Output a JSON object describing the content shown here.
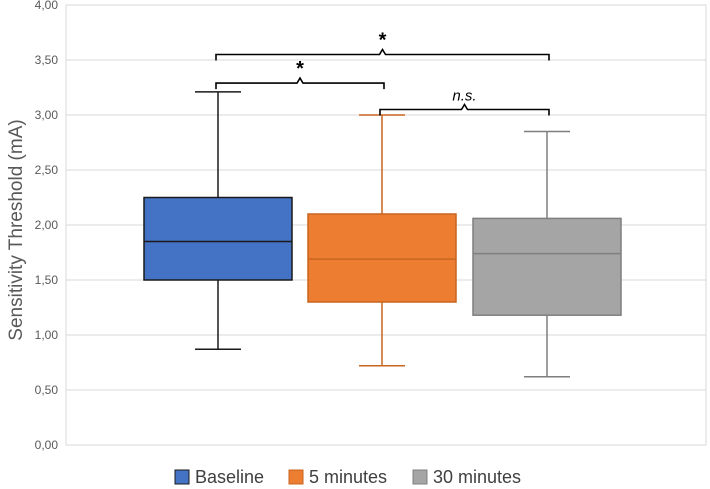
{
  "chart_data": {
    "type": "box",
    "title": "",
    "xlabel": "",
    "ylabel": "Sensitivity Threshold (mA)",
    "ylim": [
      0,
      4
    ],
    "yticks": [
      "0,00",
      "0,50",
      "1,00",
      "1,50",
      "2,00",
      "2,50",
      "3,00",
      "3,50",
      "4,00"
    ],
    "grid": true,
    "legend_position": "bottom",
    "series": [
      {
        "name": "Baseline",
        "color": "#4472C4",
        "line_color": "#1a1a1a",
        "whisker_low": 0.87,
        "q1": 1.5,
        "median": 1.85,
        "q3": 2.25,
        "whisker_high": 3.21
      },
      {
        "name": "5 minutes",
        "color": "#ED7D31",
        "line_color": "#C8651F",
        "whisker_low": 0.72,
        "q1": 1.3,
        "median": 1.69,
        "q3": 2.1,
        "whisker_high": 3.0
      },
      {
        "name": "30 minutes",
        "color": "#A5A5A5",
        "line_color": "#7F7F7F",
        "whisker_low": 0.62,
        "q1": 1.18,
        "median": 1.74,
        "q3": 2.06,
        "whisker_high": 2.85
      }
    ],
    "annotations": [
      {
        "from": "Baseline",
        "to": "30 minutes",
        "y": 3.55,
        "label": "*",
        "italic": false
      },
      {
        "from": "Baseline",
        "to": "5 minutes",
        "y": 3.29,
        "label": "*",
        "italic": false
      },
      {
        "from": "5 minutes",
        "to": "30 minutes",
        "y": 3.05,
        "label": "n.s.",
        "italic": true
      }
    ]
  }
}
